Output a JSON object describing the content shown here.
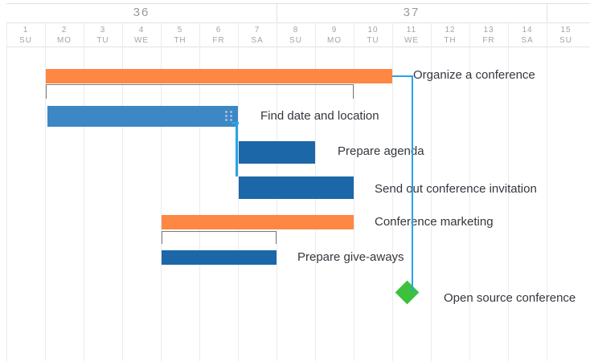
{
  "weeks": [
    {
      "label": "36"
    },
    {
      "label": "37"
    }
  ],
  "days": [
    {
      "num": "1",
      "dow": "SU"
    },
    {
      "num": "2",
      "dow": "MO"
    },
    {
      "num": "3",
      "dow": "TU"
    },
    {
      "num": "4",
      "dow": "WE"
    },
    {
      "num": "5",
      "dow": "TH"
    },
    {
      "num": "6",
      "dow": "FR"
    },
    {
      "num": "7",
      "dow": "SA"
    },
    {
      "num": "8",
      "dow": "SU"
    },
    {
      "num": "9",
      "dow": "MO"
    },
    {
      "num": "10",
      "dow": "TU"
    },
    {
      "num": "11",
      "dow": "WE"
    },
    {
      "num": "12",
      "dow": "TH"
    },
    {
      "num": "13",
      "dow": "FR"
    },
    {
      "num": "14",
      "dow": "SA"
    },
    {
      "num": "15",
      "dow": "SU"
    }
  ],
  "tasks": [
    {
      "name": "Organize a conference",
      "type": "summary",
      "start_day": 2,
      "end_day": 11
    },
    {
      "name": "Find date and location",
      "type": "task",
      "start_day": 2,
      "end_day": 7,
      "selected": true
    },
    {
      "name": "Prepare agenda",
      "type": "task",
      "start_day": 7,
      "end_day": 9
    },
    {
      "name": "Send out conference invitation",
      "type": "task",
      "start_day": 7,
      "end_day": 10
    },
    {
      "name": "Conference marketing",
      "type": "summary",
      "start_day": 5,
      "end_day": 10
    },
    {
      "name": "Prepare give-aways",
      "type": "task",
      "start_day": 5,
      "end_day": 8
    },
    {
      "name": "Open source conference",
      "type": "milestone",
      "day": 11
    }
  ],
  "colors": {
    "summary": "#fd8743",
    "task": "#1c67a7",
    "selected": "#3d87c4",
    "milestone": "#3cc13c",
    "dependency": "#29a3e4"
  }
}
